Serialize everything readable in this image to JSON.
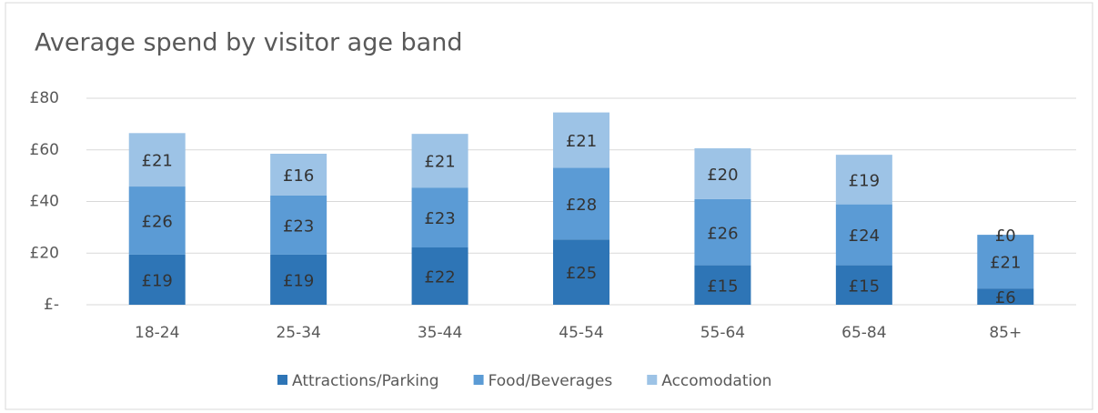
{
  "chart_data": {
    "type": "stacked_bar",
    "title": "Average spend by visitor age band",
    "categories": [
      "18-24",
      "25-34",
      "35-44",
      "45-54",
      "55-64",
      "65-84",
      "85+"
    ],
    "series": [
      {
        "name": "Attractions/Parking",
        "color": "#2e75b6",
        "values": [
          19.4,
          19.4,
          22.2,
          25.3,
          15.3,
          15.3,
          6.3
        ],
        "value_labels": [
          "£19",
          "£19",
          "£22",
          "£25",
          "£15",
          "£15",
          "£6"
        ]
      },
      {
        "name": "Food/Beverages",
        "color": "#5b9bd5",
        "values": [
          26.4,
          22.9,
          23.2,
          27.8,
          25.6,
          23.6,
          20.8
        ],
        "value_labels": [
          "£26",
          "£23",
          "£23",
          "£28",
          "£26",
          "£24",
          "£21"
        ]
      },
      {
        "name": "Accomodation",
        "color": "#9dc3e6",
        "values": [
          20.7,
          16.2,
          20.8,
          21.4,
          19.7,
          19.2,
          0
        ],
        "value_labels": [
          "£21",
          "£16",
          "£21",
          "£21",
          "£20",
          "£19",
          "£0"
        ]
      }
    ],
    "ylim": [
      0,
      80
    ],
    "yticks": [
      {
        "value": 0,
        "label": "£-"
      },
      {
        "value": 20,
        "label": "£20"
      },
      {
        "value": 40,
        "label": "£40"
      },
      {
        "value": 60,
        "label": "£60"
      },
      {
        "value": 80,
        "label": "£80"
      }
    ],
    "grid": true,
    "legend": "bottom"
  }
}
